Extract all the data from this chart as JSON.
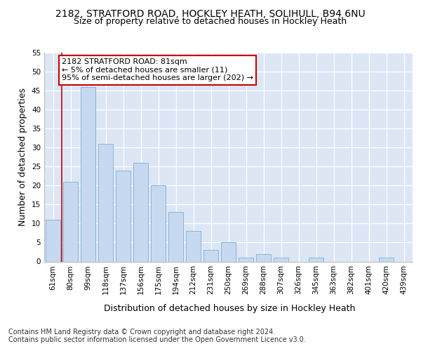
{
  "title1": "2182, STRATFORD ROAD, HOCKLEY HEATH, SOLIHULL, B94 6NU",
  "title2": "Size of property relative to detached houses in Hockley Heath",
  "xlabel": "Distribution of detached houses by size in Hockley Heath",
  "ylabel": "Number of detached properties",
  "categories": [
    "61sqm",
    "80sqm",
    "99sqm",
    "118sqm",
    "137sqm",
    "156sqm",
    "175sqm",
    "194sqm",
    "212sqm",
    "231sqm",
    "250sqm",
    "269sqm",
    "288sqm",
    "307sqm",
    "326sqm",
    "345sqm",
    "363sqm",
    "382sqm",
    "401sqm",
    "420sqm",
    "439sqm"
  ],
  "values": [
    11,
    21,
    46,
    31,
    24,
    26,
    20,
    13,
    8,
    3,
    5,
    1,
    2,
    1,
    0,
    1,
    0,
    0,
    0,
    1,
    0
  ],
  "bar_color": "#c6d9f0",
  "bar_edge_color": "#8ab4d8",
  "highlight_bar_index": 1,
  "highlight_color": "#cc0000",
  "annotation_text": "2182 STRATFORD ROAD: 81sqm\n← 5% of detached houses are smaller (11)\n95% of semi-detached houses are larger (202) →",
  "annotation_box_color": "#ffffff",
  "annotation_box_edge": "#cc0000",
  "ylim": [
    0,
    55
  ],
  "yticks": [
    0,
    5,
    10,
    15,
    20,
    25,
    30,
    35,
    40,
    45,
    50,
    55
  ],
  "footnote": "Contains HM Land Registry data © Crown copyright and database right 2024.\nContains public sector information licensed under the Open Government Licence v3.0.",
  "bg_color": "#dce6f5",
  "title1_fontsize": 10,
  "title2_fontsize": 9,
  "axis_label_fontsize": 9,
  "tick_fontsize": 7.5,
  "annotation_fontsize": 8,
  "footnote_fontsize": 7
}
